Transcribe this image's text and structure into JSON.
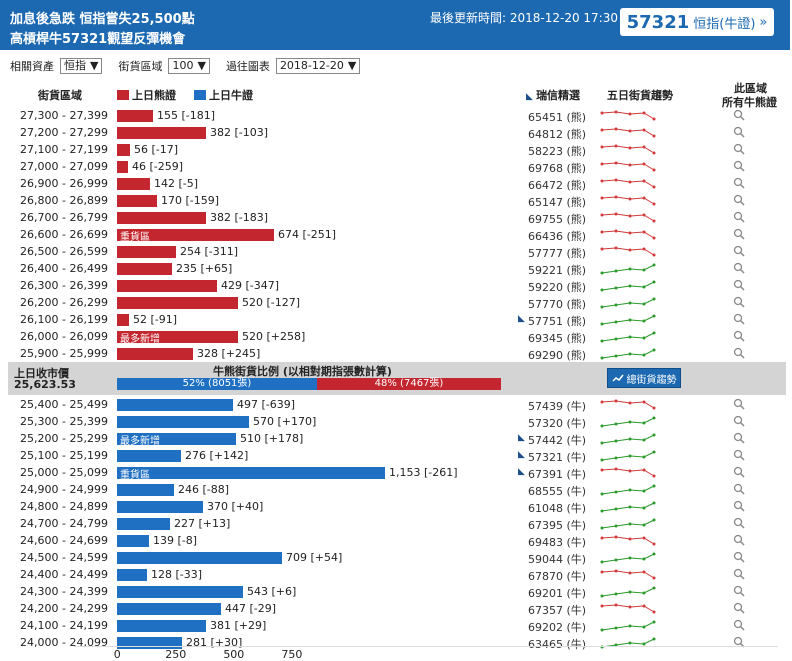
{
  "header": {
    "headline1": "加息後急跌 恒指嘗失25,500點",
    "headline2": "高槓桿牛57321觀望反彈機會",
    "updated": "最後更新時間: 2018-12-20 17:30",
    "code": "57321",
    "code_name": "恒指(牛證)",
    "code_arrow": "»"
  },
  "controls": {
    "asset_label": "相關資產",
    "asset_value": "恒指",
    "zone_label": "街貨區域",
    "zone_value": "100",
    "history_label": "過往圖表",
    "history_value": "2018-12-20",
    "arrow": "▼"
  },
  "columns": {
    "zone": "街貨區域",
    "bear_legend": "上日熊證",
    "bull_legend": "上日牛證",
    "ubs": "瑞信精選",
    "trend": "五日街貨趨勢",
    "all1": "此區域",
    "all2": "所有牛熊證"
  },
  "colors": {
    "bear": "#c3262e",
    "bull": "#1f6fc3",
    "header": "#1c69b2"
  },
  "mid": {
    "close_label": "上日收市價",
    "close_value": "25,623.53",
    "ratio_title": "牛熊街貨比例 (以相對期指張數計算)",
    "bull_pct": 52,
    "bear_pct": 48,
    "bull_text": "52% (8051張)",
    "bear_text": "48% (7467張)",
    "trend_button": "總街貨趨勢"
  },
  "bear_rows": [
    {
      "range": "27,300 - 27,399",
      "value": 155,
      "label": "155 [-181]",
      "code": "65451 (熊)",
      "tag": "",
      "ubs": false,
      "trend": "down"
    },
    {
      "range": "27,200 - 27,299",
      "value": 382,
      "label": "382 [-103]",
      "code": "64812 (熊)",
      "tag": "",
      "ubs": false,
      "trend": "down"
    },
    {
      "range": "27,100 - 27,199",
      "value": 56,
      "label": "56 [-17]",
      "code": "58223 (熊)",
      "tag": "",
      "ubs": false,
      "trend": "down"
    },
    {
      "range": "27,000 - 27,099",
      "value": 46,
      "label": "46 [-259]",
      "code": "69768 (熊)",
      "tag": "",
      "ubs": false,
      "trend": "down"
    },
    {
      "range": "26,900 - 26,999",
      "value": 142,
      "label": "142 [-5]",
      "code": "66472 (熊)",
      "tag": "",
      "ubs": false,
      "trend": "down"
    },
    {
      "range": "26,800 - 26,899",
      "value": 170,
      "label": "170 [-159]",
      "code": "65147 (熊)",
      "tag": "",
      "ubs": false,
      "trend": "down"
    },
    {
      "range": "26,700 - 26,799",
      "value": 382,
      "label": "382 [-183]",
      "code": "69755 (熊)",
      "tag": "",
      "ubs": false,
      "trend": "down"
    },
    {
      "range": "26,600 - 26,699",
      "value": 674,
      "label": "674 [-251]",
      "code": "66436 (熊)",
      "tag": "重貨區",
      "ubs": false,
      "trend": "down"
    },
    {
      "range": "26,500 - 26,599",
      "value": 254,
      "label": "254 [-311]",
      "code": "57777 (熊)",
      "tag": "",
      "ubs": false,
      "trend": "down"
    },
    {
      "range": "26,400 - 26,499",
      "value": 235,
      "label": "235 [+65]",
      "code": "59221 (熊)",
      "tag": "",
      "ubs": false,
      "trend": "up"
    },
    {
      "range": "26,300 - 26,399",
      "value": 429,
      "label": "429 [-347]",
      "code": "59220 (熊)",
      "tag": "",
      "ubs": false,
      "trend": "up"
    },
    {
      "range": "26,200 - 26,299",
      "value": 520,
      "label": "520 [-127]",
      "code": "57770 (熊)",
      "tag": "",
      "ubs": false,
      "trend": "up"
    },
    {
      "range": "26,100 - 26,199",
      "value": 52,
      "label": "52 [-91]",
      "code": "57751 (熊)",
      "tag": "",
      "ubs": true,
      "trend": "up"
    },
    {
      "range": "26,000 - 26,099",
      "value": 520,
      "label": "520 [+258]",
      "code": "69345 (熊)",
      "tag": "最多新增",
      "ubs": false,
      "trend": "up"
    },
    {
      "range": "25,900 - 25,999",
      "value": 328,
      "label": "328 [+245]",
      "code": "69290 (熊)",
      "tag": "",
      "ubs": false,
      "trend": "up"
    }
  ],
  "bull_rows": [
    {
      "range": "25,400 - 25,499",
      "value": 497,
      "label": "497 [-639]",
      "code": "57439 (牛)",
      "tag": "",
      "ubs": false,
      "trend": "down"
    },
    {
      "range": "25,300 - 25,399",
      "value": 570,
      "label": "570 [+170]",
      "code": "57320 (牛)",
      "tag": "",
      "ubs": false,
      "trend": "up"
    },
    {
      "range": "25,200 - 25,299",
      "value": 510,
      "label": "510 [+178]",
      "code": "57442 (牛)",
      "tag": "最多新增",
      "ubs": true,
      "trend": "up"
    },
    {
      "range": "25,100 - 25,199",
      "value": 276,
      "label": "276 [+142]",
      "code": "57321 (牛)",
      "tag": "",
      "ubs": true,
      "trend": "up"
    },
    {
      "range": "25,000 - 25,099",
      "value": 1153,
      "label": "1,153 [-261]",
      "code": "67391 (牛)",
      "tag": "重貨區",
      "ubs": true,
      "trend": "down"
    },
    {
      "range": "24,900 - 24,999",
      "value": 246,
      "label": "246 [-88]",
      "code": "68555 (牛)",
      "tag": "",
      "ubs": false,
      "trend": "up"
    },
    {
      "range": "24,800 - 24,899",
      "value": 370,
      "label": "370 [+40]",
      "code": "61048 (牛)",
      "tag": "",
      "ubs": false,
      "trend": "up"
    },
    {
      "range": "24,700 - 24,799",
      "value": 227,
      "label": "227 [+13]",
      "code": "67395 (牛)",
      "tag": "",
      "ubs": false,
      "trend": "up"
    },
    {
      "range": "24,600 - 24,699",
      "value": 139,
      "label": "139 [-8]",
      "code": "69483 (牛)",
      "tag": "",
      "ubs": false,
      "trend": "down"
    },
    {
      "range": "24,500 - 24,599",
      "value": 709,
      "label": "709 [+54]",
      "code": "59044 (牛)",
      "tag": "",
      "ubs": false,
      "trend": "up"
    },
    {
      "range": "24,400 - 24,499",
      "value": 128,
      "label": "128 [-33]",
      "code": "67870 (牛)",
      "tag": "",
      "ubs": false,
      "trend": "down"
    },
    {
      "range": "24,300 - 24,399",
      "value": 543,
      "label": "543 [+6]",
      "code": "69201 (牛)",
      "tag": "",
      "ubs": false,
      "trend": "up"
    },
    {
      "range": "24,200 - 24,299",
      "value": 447,
      "label": "447 [-29]",
      "code": "67357 (牛)",
      "tag": "",
      "ubs": false,
      "trend": "down"
    },
    {
      "range": "24,100 - 24,199",
      "value": 381,
      "label": "381 [+29]",
      "code": "69202 (牛)",
      "tag": "",
      "ubs": false,
      "trend": "up"
    },
    {
      "range": "24,000 - 24,099",
      "value": 281,
      "label": "281 [+30]",
      "code": "63465 (牛)",
      "tag": "",
      "ubs": false,
      "trend": "up"
    }
  ],
  "axis": {
    "ticks": [
      0,
      250,
      500,
      750
    ]
  }
}
